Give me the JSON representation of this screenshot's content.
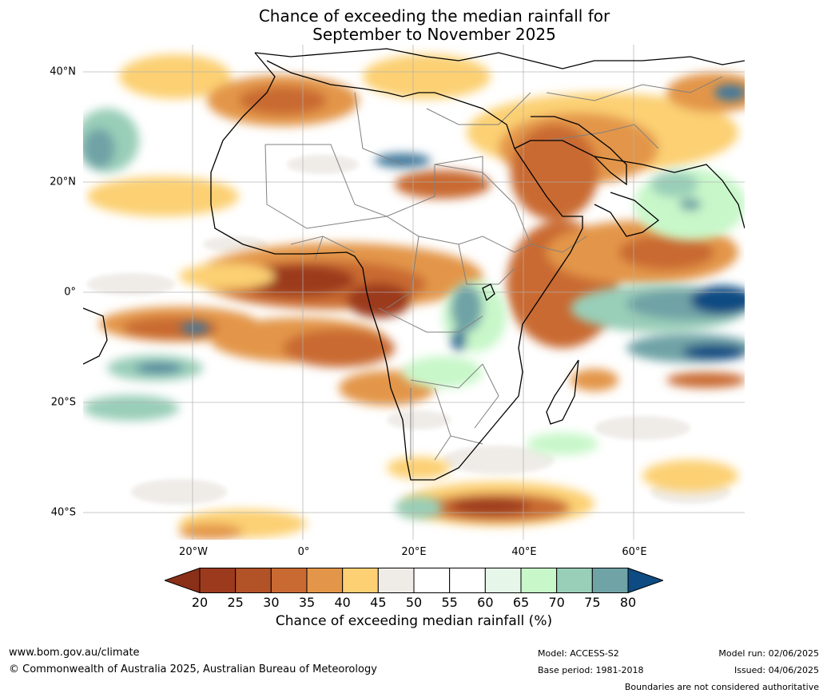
{
  "title_line1": "Chance of exceeding the median rainfall for",
  "title_line2": "September to November 2025",
  "map": {
    "region": "Africa",
    "lat_labels": [
      "40°N",
      "20°N",
      "0°",
      "20°S",
      "40°S"
    ],
    "lon_labels": [
      "20°W",
      "0°",
      "20°E",
      "40°E",
      "60°E"
    ],
    "colors": {
      "land_outline": "#000000",
      "borders": "#808080",
      "grid": "#b0b0b0"
    }
  },
  "colorbar": {
    "ticks": [
      "20",
      "25",
      "30",
      "35",
      "40",
      "45",
      "50",
      "55",
      "60",
      "65",
      "70",
      "75",
      "80"
    ],
    "bin_colors": [
      "#9c3a1e",
      "#b25227",
      "#c96a33",
      "#e3964a",
      "#fcd073",
      "#efece8",
      "#ffffff",
      "#ffffff",
      "#e6f6e8",
      "#c8f7c9",
      "#99ceb8",
      "#6fa3a6",
      "#41789b"
    ],
    "under_color": "#8a2f18",
    "over_color": "#0d4b82",
    "label": "Chance of exceeding median rainfall (%)"
  },
  "footer": {
    "website": "www.bom.gov.au/climate",
    "copyright": "© Commonwealth of Australia 2025, Australian Bureau of Meteorology",
    "model": "Model: ACCESS-S2",
    "base_period": "Base period: 1981-2018",
    "model_run": "Model run: 02/06/2025",
    "issued": "Issued: 04/06/2025",
    "disclaimer": "Boundaries are not considered authoritative"
  }
}
